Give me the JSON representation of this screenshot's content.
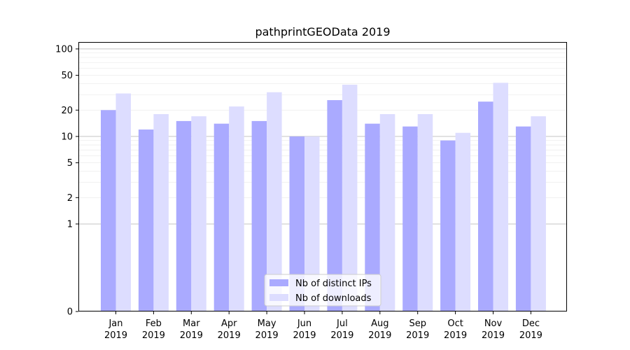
{
  "chart_data": {
    "type": "bar",
    "title": "pathprintGEOData 2019",
    "xlabel": "",
    "ylabel": "",
    "categories": [
      [
        "Jan",
        "2019"
      ],
      [
        "Feb",
        "2019"
      ],
      [
        "Mar",
        "2019"
      ],
      [
        "Apr",
        "2019"
      ],
      [
        "May",
        "2019"
      ],
      [
        "Jun",
        "2019"
      ],
      [
        "Jul",
        "2019"
      ],
      [
        "Aug",
        "2019"
      ],
      [
        "Sep",
        "2019"
      ],
      [
        "Oct",
        "2019"
      ],
      [
        "Nov",
        "2019"
      ],
      [
        "Dec",
        "2019"
      ]
    ],
    "series": [
      {
        "name": "Nb of distinct IPs",
        "color": "#aaaaff",
        "values": [
          20,
          12,
          15,
          14,
          15,
          10,
          26,
          14,
          13,
          9,
          25,
          13
        ]
      },
      {
        "name": "Nb of downloads",
        "color": "#ddddff",
        "values": [
          31,
          18,
          17,
          22,
          32,
          10,
          39,
          18,
          18,
          11,
          41,
          17
        ]
      }
    ],
    "y_scale": "symlog",
    "ylim": [
      0,
      120
    ],
    "yticks": [
      0,
      1,
      2,
      5,
      10,
      20,
      50,
      100
    ],
    "ytick_labels": [
      "0",
      "1",
      "2",
      "5",
      "10",
      "20",
      "50",
      "100"
    ],
    "major_gridlines": [
      1,
      10,
      100
    ],
    "minor_gridlines": [
      2,
      3,
      4,
      5,
      6,
      7,
      8,
      9,
      20,
      30,
      40,
      50,
      60,
      70,
      80,
      90
    ],
    "grid": true,
    "legend_position": "bottom-center"
  }
}
